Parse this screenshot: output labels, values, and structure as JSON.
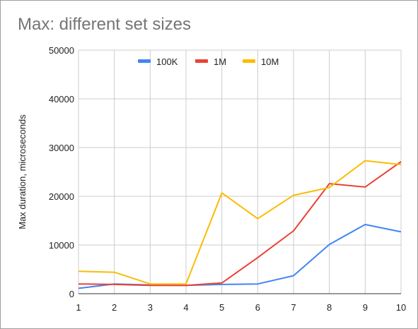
{
  "chart_data": {
    "type": "line",
    "title": "Max: different set sizes",
    "xlabel": "",
    "ylabel": "Max duration, microseconds",
    "x": [
      1,
      2,
      3,
      4,
      5,
      6,
      7,
      8,
      9,
      10
    ],
    "x_ticks": [
      "1",
      "2",
      "3",
      "4",
      "5",
      "6",
      "7",
      "8",
      "9",
      "10"
    ],
    "xlim": [
      1,
      10
    ],
    "ylim": [
      0,
      50000
    ],
    "y_ticks": [
      0,
      10000,
      20000,
      30000,
      40000,
      50000
    ],
    "y_tick_labels": [
      "0",
      "10000",
      "20000",
      "30000",
      "40000",
      "50000"
    ],
    "grid": true,
    "legend_position": "top",
    "series": [
      {
        "name": "100K",
        "color": "#4285f4",
        "values": [
          1100,
          2000,
          1800,
          1700,
          1900,
          2000,
          3700,
          10100,
          14200,
          12700
        ]
      },
      {
        "name": "1M",
        "color": "#ea4335",
        "values": [
          2000,
          1900,
          1700,
          1700,
          2200,
          7400,
          12900,
          22600,
          21900,
          27100
        ]
      },
      {
        "name": "10M",
        "color": "#fbbc04",
        "values": [
          4600,
          4400,
          2000,
          2000,
          20700,
          15400,
          20200,
          21800,
          27300,
          26500
        ]
      }
    ]
  }
}
